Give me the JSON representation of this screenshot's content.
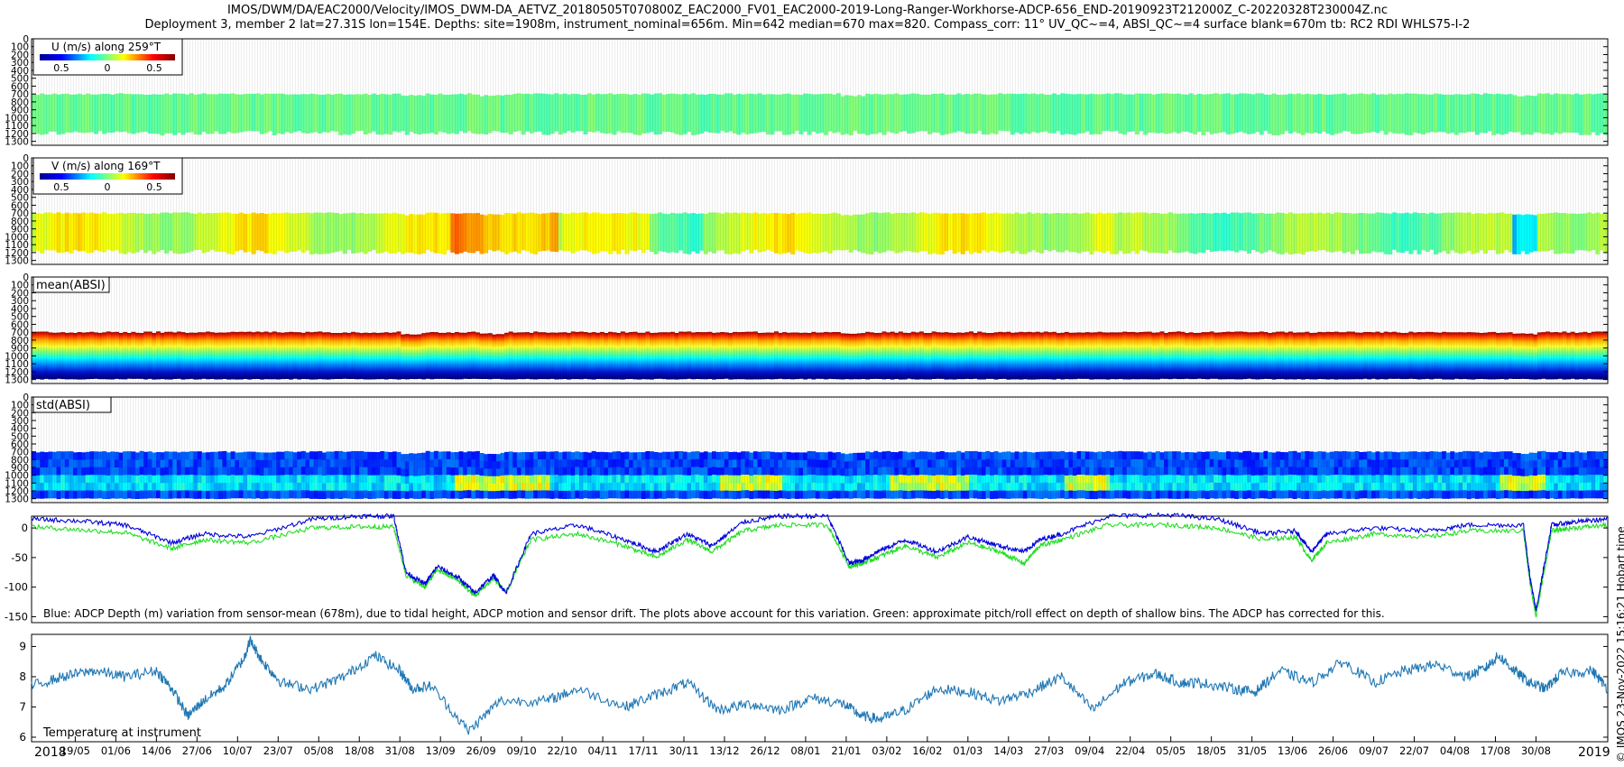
{
  "header": {
    "title_line1": "IMOS/DWM/DA/EAC2000/Velocity/IMOS_DWM-DA_AETVZ_20180505T070800Z_EAC2000_FV01_EAC2000-2019-Long-Ranger-Workhorse-ADCP-656_END-20190923T212000Z_C-20220328T230004Z.nc",
    "title_line2": "Deployment 3, member 2 lat=27.31S lon=154E. Depths: site=1908m, instrument_nominal=656m. Min=642 median=670 max=820. Compass_corr: 11° UV_QC~=4, ABSI_QC~=4 surface blank=670m tb: RC2 RDI WHLS75-I-2"
  },
  "side_stamp": "© IMOS 23-Nov-2022 15:16:21 Hobart time",
  "colors": {
    "blue_line": "#0000dd",
    "green_line": "#22dd22",
    "temp_line": "#1f77b4",
    "jet": [
      "#00008f",
      "#0000ff",
      "#00ffff",
      "#7fff7f",
      "#ffff00",
      "#ff0000",
      "#800000"
    ]
  },
  "panels": {
    "u": {
      "legend_title": "U (m/s) along 259°T",
      "scale_labels": [
        "0.5",
        "0",
        "0.5"
      ]
    },
    "v": {
      "legend_title": "V (m/s) along 169°T",
      "scale_labels": [
        "0.5",
        "0",
        "0.5"
      ]
    },
    "mean_absi": {
      "label": "mean(ABSI)"
    },
    "std_absi": {
      "label": "std(ABSI)"
    },
    "depth": {
      "caption": "Blue: ADCP Depth (m) variation from sensor-mean (678m), due to tidal height, ADCP motion and sensor drift. The plots above account for this variation. Green: approximate pitch/roll effect on depth of shallow bins. The ADCP has corrected for this."
    },
    "temperature": {
      "label": "Temperature at instrument"
    }
  },
  "x_axis": {
    "start_year": "2018",
    "end_year": "2019",
    "ticks": [
      "19/05",
      "01/06",
      "14/06",
      "27/06",
      "10/07",
      "23/07",
      "05/08",
      "18/08",
      "31/08",
      "13/09",
      "26/09",
      "09/10",
      "22/10",
      "04/11",
      "17/11",
      "30/11",
      "13/12",
      "26/12",
      "08/01",
      "21/01",
      "03/02",
      "16/02",
      "01/03",
      "14/03",
      "27/03",
      "09/04",
      "22/04",
      "05/05",
      "18/05",
      "31/05",
      "13/06",
      "26/06",
      "09/07",
      "22/07",
      "04/08",
      "17/08",
      "30/08"
    ]
  },
  "chart_data": [
    {
      "type": "heatmap",
      "name": "U velocity",
      "colorbar_label": "U (m/s) along 259°T",
      "y_ticks": [
        "0",
        "100",
        "200",
        "300",
        "400",
        "500",
        "600",
        "700",
        "800",
        "900",
        "1000",
        "1100",
        "1200",
        "1300"
      ],
      "ylim": [
        1350,
        0
      ],
      "depth_range_m": [
        690,
        1200
      ],
      "dominant_value": "near 0 m/s (green)"
    },
    {
      "type": "heatmap",
      "name": "V velocity",
      "colorbar_label": "V (m/s) along 169°T",
      "y_ticks": [
        "0",
        "100",
        "200",
        "300",
        "400",
        "500",
        "600",
        "700",
        "800",
        "900",
        "1000",
        "1100",
        "1200",
        "1300"
      ],
      "ylim": [
        1350,
        0
      ],
      "depth_range_m": [
        690,
        1200
      ],
      "dominant_value": "0 to 0.5 m/s (yellow/orange) with green intervals"
    },
    {
      "type": "heatmap",
      "name": "mean(ABSI)",
      "y_ticks": [
        "0",
        "100",
        "200",
        "300",
        "400",
        "500",
        "600",
        "700",
        "800",
        "900",
        "1000",
        "1100",
        "1200",
        "1300"
      ],
      "ylim": [
        1350,
        0
      ],
      "depth_range_m": [
        690,
        1300
      ],
      "gradient": "high (red) near 700 m decreasing to low (dark blue) near 1300 m"
    },
    {
      "type": "heatmap",
      "name": "std(ABSI)",
      "y_ticks": [
        "0",
        "100",
        "200",
        "300",
        "400",
        "500",
        "600",
        "700",
        "800",
        "900",
        "1000",
        "1100",
        "1200",
        "1300"
      ],
      "ylim": [
        1350,
        0
      ],
      "depth_range_m": [
        690,
        1300
      ],
      "dominant_value": "low (blue) with green/yellow patches near 1000-1200 m"
    },
    {
      "type": "line",
      "name": "ADCP depth variation",
      "y_ticks": [
        "0",
        "-50",
        "-100",
        "-150"
      ],
      "ylim": [
        -160,
        20
      ],
      "x_range_days": [
        0,
        505
      ],
      "series": [
        {
          "color": "blue",
          "x": [
            0,
            15,
            30,
            45,
            55,
            70,
            90,
            105,
            116,
            120,
            126,
            130,
            137,
            142,
            148,
            152,
            160,
            175,
            190,
            200,
            210,
            218,
            228,
            240,
            255,
            262,
            266,
            271,
            280,
            290,
            300,
            310,
            318,
            323,
            330,
            345,
            365,
            380,
            395,
            405,
            410,
            415,
            430,
            448,
            460,
            478,
            480,
            482,
            487,
            494,
            505
          ],
          "y": [
            15,
            12,
            5,
            -25,
            -10,
            -15,
            15,
            20,
            20,
            -75,
            -95,
            -65,
            -85,
            -110,
            -80,
            -110,
            -10,
            5,
            -20,
            -40,
            -10,
            -30,
            10,
            20,
            20,
            -60,
            -55,
            -40,
            -20,
            -40,
            -15,
            -30,
            -40,
            -20,
            -10,
            20,
            22,
            15,
            -10,
            -5,
            -40,
            -10,
            0,
            -5,
            5,
            5,
            -80,
            -140,
            5,
            10,
            15
          ]
        },
        {
          "color": "green",
          "x": [
            0,
            15,
            30,
            45,
            55,
            70,
            90,
            105,
            116,
            120,
            126,
            130,
            137,
            142,
            148,
            152,
            160,
            175,
            190,
            200,
            210,
            218,
            228,
            240,
            255,
            262,
            266,
            271,
            280,
            290,
            300,
            310,
            318,
            323,
            330,
            345,
            365,
            380,
            395,
            405,
            410,
            415,
            430,
            448,
            460,
            478,
            480,
            482,
            487,
            494,
            505
          ],
          "y": [
            2,
            -3,
            -8,
            -35,
            -20,
            -25,
            0,
            2,
            2,
            -80,
            -100,
            -70,
            -90,
            -115,
            -85,
            -110,
            -20,
            -10,
            -30,
            -50,
            -20,
            -40,
            -5,
            5,
            5,
            -65,
            -60,
            -50,
            -30,
            -50,
            -25,
            -40,
            -60,
            -30,
            -20,
            5,
            5,
            0,
            -20,
            -15,
            -55,
            -25,
            -10,
            -15,
            -5,
            -5,
            -90,
            -150,
            -5,
            0,
            5
          ]
        }
      ]
    },
    {
      "type": "line",
      "name": "Temperature at instrument",
      "y_ticks": [
        "6",
        "7",
        "8",
        "9"
      ],
      "ylim": [
        5.85,
        9.4
      ],
      "x_range_days": [
        0,
        505
      ],
      "series": [
        {
          "color": "blue",
          "x": [
            0,
            10,
            20,
            30,
            40,
            45,
            50,
            55,
            62,
            68,
            70,
            74,
            80,
            90,
            100,
            110,
            118,
            122,
            128,
            140,
            150,
            165,
            175,
            190,
            200,
            210,
            220,
            230,
            240,
            250,
            260,
            266,
            272,
            280,
            290,
            300,
            310,
            320,
            330,
            340,
            350,
            360,
            368,
            375,
            385,
            392,
            400,
            410,
            420,
            430,
            440,
            450,
            460,
            466,
            470,
            475,
            480,
            485,
            490,
            500,
            505
          ],
          "y": [
            7.7,
            8.0,
            8.2,
            8.0,
            8.2,
            7.6,
            6.7,
            7.2,
            7.7,
            8.6,
            9.2,
            8.5,
            7.8,
            7.6,
            8.0,
            8.7,
            8.2,
            7.6,
            7.7,
            6.2,
            7.2,
            7.2,
            7.6,
            7.0,
            7.4,
            7.8,
            6.9,
            7.1,
            6.9,
            7.3,
            7.1,
            6.7,
            6.6,
            6.9,
            7.6,
            7.5,
            7.2,
            7.5,
            8.0,
            6.9,
            7.8,
            8.1,
            7.8,
            7.8,
            7.6,
            7.5,
            8.2,
            7.8,
            8.5,
            7.8,
            8.2,
            8.4,
            8.0,
            8.3,
            8.7,
            8.2,
            7.8,
            7.6,
            8.1,
            8.2,
            7.6
          ]
        }
      ]
    }
  ]
}
